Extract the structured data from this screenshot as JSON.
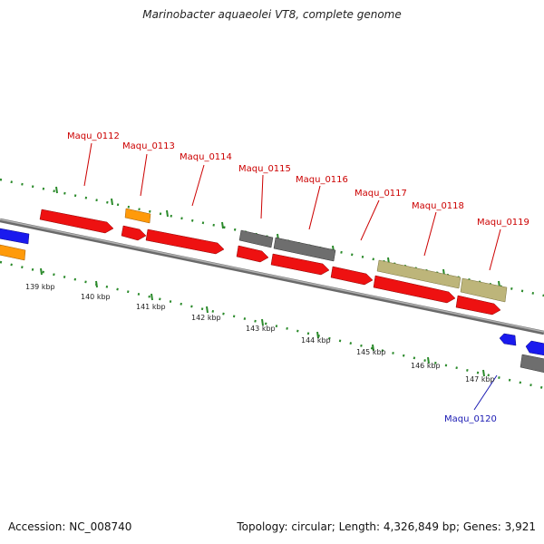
{
  "title": "Marinobacter aquaeolei VT8, complete genome",
  "footer": {
    "accession": "Accession: NC_008740",
    "summary": "Topology: circular; Length: 4,326,849 bp; Genes: 3,921"
  },
  "colors": {
    "red_gene": "#ee1111",
    "grey_gene": "#6e6e6e",
    "khaki_gene": "#bdb57a",
    "orange_gene": "#ff9a0a",
    "blue_gene": "#1a1aee",
    "backbone": "#8c8c8c",
    "tick": "#2a8a2a",
    "red_label": "#cc0000",
    "blue_label": "#1a1ab3"
  },
  "scale": {
    "labels": [
      "139 kbp",
      "140 kbp",
      "141 kbp",
      "142 kbp",
      "143 kbp",
      "144 kbp",
      "145 kbp",
      "146 kbp",
      "147 kbp"
    ]
  },
  "gene_labels": [
    {
      "id": "Maqu_0112",
      "text": "Maqu_0112",
      "color": "red"
    },
    {
      "id": "Maqu_0113",
      "text": "Maqu_0113",
      "color": "red"
    },
    {
      "id": "Maqu_0114",
      "text": "Maqu_0114",
      "color": "red"
    },
    {
      "id": "Maqu_0115",
      "text": "Maqu_0115",
      "color": "red"
    },
    {
      "id": "Maqu_0116",
      "text": "Maqu_0116",
      "color": "red"
    },
    {
      "id": "Maqu_0117",
      "text": "Maqu_0117",
      "color": "red"
    },
    {
      "id": "Maqu_0118",
      "text": "Maqu_0118",
      "color": "red"
    },
    {
      "id": "Maqu_0119",
      "text": "Maqu_0119",
      "color": "red"
    },
    {
      "id": "Maqu_0120",
      "text": "Maqu_0120",
      "color": "blue"
    }
  ]
}
